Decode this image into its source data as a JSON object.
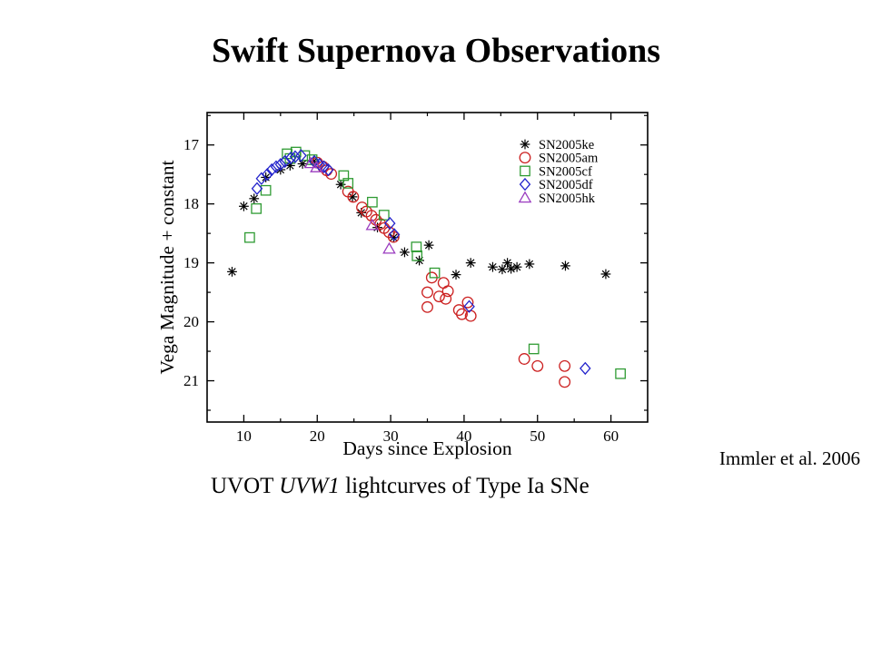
{
  "slide": {
    "title": "Swift Supernova Observations",
    "caption": {
      "prefix": "UVOT ",
      "italic": "UVW1",
      "suffix": " lightcurves of Type Ia SNe"
    },
    "credit": "Immler et al. 2006"
  },
  "chart_data": {
    "type": "scatter",
    "title": "",
    "xlabel": "Days since Explosion",
    "ylabel": "Vega Magnitude + constant",
    "grid": false,
    "legend_position": "top-right-inside",
    "x_axis": {
      "min": 5,
      "max": 65,
      "major_ticks": [
        10,
        20,
        30,
        40,
        50,
        60
      ],
      "minor_ticks": [
        15,
        25,
        35,
        45,
        55
      ]
    },
    "y_axis": {
      "min": 16.45,
      "max": 21.7,
      "inverted": true,
      "major_ticks": [
        17,
        18,
        19,
        20,
        21
      ],
      "minor_ticks": [
        16.5,
        17.5,
        18.5,
        19.5,
        20.5,
        21.5
      ]
    },
    "series": [
      {
        "name": "SN2005ke",
        "marker": "star",
        "color": "#000000",
        "points": [
          [
            8.4,
            19.15
          ],
          [
            10.0,
            18.04
          ],
          [
            11.4,
            17.91
          ],
          [
            13.0,
            17.55
          ],
          [
            15.0,
            17.42
          ],
          [
            16.3,
            17.35
          ],
          [
            18.0,
            17.32
          ],
          [
            19.5,
            17.28
          ],
          [
            23.2,
            17.67
          ],
          [
            24.8,
            17.88
          ],
          [
            26.0,
            18.15
          ],
          [
            28.2,
            18.4
          ],
          [
            30.4,
            18.57
          ],
          [
            31.9,
            18.82
          ],
          [
            33.9,
            18.96
          ],
          [
            35.2,
            18.7
          ],
          [
            38.9,
            19.2
          ],
          [
            40.9,
            19.0
          ],
          [
            43.9,
            19.07
          ],
          [
            45.2,
            19.11
          ],
          [
            45.9,
            19.0
          ],
          [
            46.4,
            19.1
          ],
          [
            47.2,
            19.07
          ],
          [
            48.9,
            19.02
          ],
          [
            53.8,
            19.05
          ],
          [
            59.3,
            19.19
          ]
        ]
      },
      {
        "name": "SN2005am",
        "marker": "circle",
        "color": "#cc2222",
        "points": [
          [
            20.0,
            17.3
          ],
          [
            20.8,
            17.37
          ],
          [
            21.3,
            17.43
          ],
          [
            21.9,
            17.49
          ],
          [
            24.2,
            17.79
          ],
          [
            24.9,
            17.88
          ],
          [
            26.1,
            18.06
          ],
          [
            26.7,
            18.13
          ],
          [
            27.4,
            18.2
          ],
          [
            28.0,
            18.27
          ],
          [
            28.6,
            18.34
          ],
          [
            29.1,
            18.41
          ],
          [
            29.8,
            18.48
          ],
          [
            30.4,
            18.56
          ],
          [
            35.0,
            19.5
          ],
          [
            35.0,
            19.75
          ],
          [
            35.6,
            19.25
          ],
          [
            36.6,
            19.57
          ],
          [
            37.2,
            19.34
          ],
          [
            37.5,
            19.61
          ],
          [
            37.8,
            19.48
          ],
          [
            39.3,
            19.8
          ],
          [
            39.7,
            19.87
          ],
          [
            40.5,
            19.67
          ],
          [
            40.9,
            19.9
          ],
          [
            48.2,
            20.63
          ],
          [
            50.0,
            20.75
          ],
          [
            53.7,
            20.75
          ],
          [
            53.7,
            21.02
          ]
        ]
      },
      {
        "name": "SN2005cf",
        "marker": "square",
        "color": "#2f9b33",
        "points": [
          [
            10.8,
            18.57
          ],
          [
            11.7,
            18.08
          ],
          [
            13.0,
            17.77
          ],
          [
            15.9,
            17.15
          ],
          [
            16.3,
            17.23
          ],
          [
            17.1,
            17.12
          ],
          [
            18.3,
            17.18
          ],
          [
            19.3,
            17.25
          ],
          [
            23.6,
            17.52
          ],
          [
            24.2,
            17.65
          ],
          [
            27.5,
            17.97
          ],
          [
            29.1,
            18.19
          ],
          [
            33.5,
            18.73
          ],
          [
            33.6,
            18.88
          ],
          [
            36.0,
            19.17
          ],
          [
            49.5,
            20.46
          ],
          [
            61.3,
            20.88
          ]
        ]
      },
      {
        "name": "SN2005df",
        "marker": "diamond",
        "color": "#2424cc",
        "points": [
          [
            11.8,
            17.74
          ],
          [
            12.4,
            17.57
          ],
          [
            13.2,
            17.5
          ],
          [
            13.8,
            17.42
          ],
          [
            14.4,
            17.37
          ],
          [
            15.0,
            17.33
          ],
          [
            15.6,
            17.28
          ],
          [
            16.4,
            17.22
          ],
          [
            17.0,
            17.2
          ],
          [
            17.8,
            17.18
          ],
          [
            19.6,
            17.28
          ],
          [
            20.3,
            17.33
          ],
          [
            20.9,
            17.37
          ],
          [
            21.5,
            17.42
          ],
          [
            29.9,
            18.33
          ],
          [
            30.5,
            18.52
          ],
          [
            40.7,
            19.74
          ],
          [
            56.5,
            20.79
          ]
        ]
      },
      {
        "name": "SN2005hk",
        "marker": "triangle",
        "color": "#9a3bbf",
        "points": [
          [
            19.1,
            17.31
          ],
          [
            19.9,
            17.38
          ],
          [
            27.5,
            18.36
          ],
          [
            29.8,
            18.76
          ]
        ]
      }
    ]
  }
}
